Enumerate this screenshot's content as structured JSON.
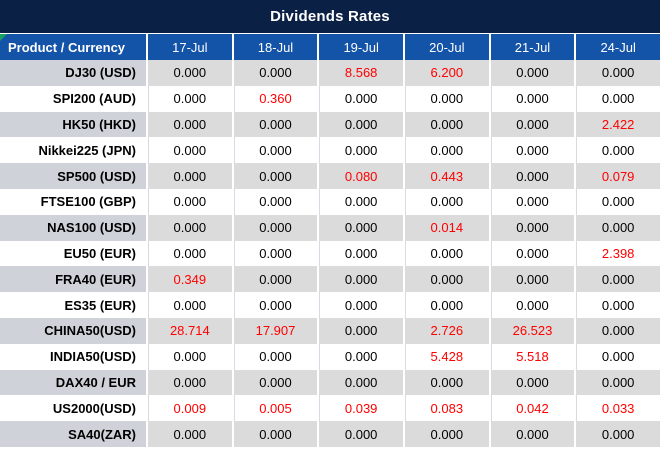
{
  "chart_data": {
    "type": "table",
    "title": "Dividends Rates",
    "columns": [
      "Product / Currency",
      "17-Jul",
      "18-Jul",
      "19-Jul",
      "20-Jul",
      "21-Jul",
      "24-Jul"
    ],
    "rows": [
      {
        "product": "DJ30 (USD)",
        "values": [
          "0.000",
          "0.000",
          "8.568",
          "6.200",
          "0.000",
          "0.000"
        ],
        "highlighted": [
          false,
          false,
          true,
          true,
          false,
          false
        ]
      },
      {
        "product": "SPI200 (AUD)",
        "values": [
          "0.000",
          "0.360",
          "0.000",
          "0.000",
          "0.000",
          "0.000"
        ],
        "highlighted": [
          false,
          true,
          false,
          false,
          false,
          false
        ]
      },
      {
        "product": "HK50 (HKD)",
        "values": [
          "0.000",
          "0.000",
          "0.000",
          "0.000",
          "0.000",
          "2.422"
        ],
        "highlighted": [
          false,
          false,
          false,
          false,
          false,
          true
        ]
      },
      {
        "product": "Nikkei225 (JPN)",
        "values": [
          "0.000",
          "0.000",
          "0.000",
          "0.000",
          "0.000",
          "0.000"
        ],
        "highlighted": [
          false,
          false,
          false,
          false,
          false,
          false
        ]
      },
      {
        "product": "SP500 (USD)",
        "values": [
          "0.000",
          "0.000",
          "0.080",
          "0.443",
          "0.000",
          "0.079"
        ],
        "highlighted": [
          false,
          false,
          true,
          true,
          false,
          true
        ]
      },
      {
        "product": "FTSE100 (GBP)",
        "values": [
          "0.000",
          "0.000",
          "0.000",
          "0.000",
          "0.000",
          "0.000"
        ],
        "highlighted": [
          false,
          false,
          false,
          false,
          false,
          false
        ]
      },
      {
        "product": "NAS100 (USD)",
        "values": [
          "0.000",
          "0.000",
          "0.000",
          "0.014",
          "0.000",
          "0.000"
        ],
        "highlighted": [
          false,
          false,
          false,
          true,
          false,
          false
        ]
      },
      {
        "product": "EU50 (EUR)",
        "values": [
          "0.000",
          "0.000",
          "0.000",
          "0.000",
          "0.000",
          "2.398"
        ],
        "highlighted": [
          false,
          false,
          false,
          false,
          false,
          true
        ]
      },
      {
        "product": "FRA40 (EUR)",
        "values": [
          "0.349",
          "0.000",
          "0.000",
          "0.000",
          "0.000",
          "0.000"
        ],
        "highlighted": [
          true,
          false,
          false,
          false,
          false,
          false
        ]
      },
      {
        "product": "ES35 (EUR)",
        "values": [
          "0.000",
          "0.000",
          "0.000",
          "0.000",
          "0.000",
          "0.000"
        ],
        "highlighted": [
          false,
          false,
          false,
          false,
          false,
          false
        ]
      },
      {
        "product": "CHINA50(USD)",
        "values": [
          "28.714",
          "17.907",
          "0.000",
          "2.726",
          "26.523",
          "0.000"
        ],
        "highlighted": [
          true,
          true,
          false,
          true,
          true,
          false
        ]
      },
      {
        "product": "INDIA50(USD)",
        "values": [
          "0.000",
          "0.000",
          "0.000",
          "5.428",
          "5.518",
          "0.000"
        ],
        "highlighted": [
          false,
          false,
          false,
          true,
          true,
          false
        ]
      },
      {
        "product": "DAX40 / EUR",
        "values": [
          "0.000",
          "0.000",
          "0.000",
          "0.000",
          "0.000",
          "0.000"
        ],
        "highlighted": [
          false,
          false,
          false,
          false,
          false,
          false
        ]
      },
      {
        "product": "US2000(USD)",
        "values": [
          "0.009",
          "0.005",
          "0.039",
          "0.083",
          "0.042",
          "0.033"
        ],
        "highlighted": [
          true,
          true,
          true,
          true,
          true,
          true
        ]
      },
      {
        "product": "SA40(ZAR)",
        "values": [
          "0.000",
          "0.000",
          "0.000",
          "0.000",
          "0.000",
          "0.000"
        ],
        "highlighted": [
          false,
          false,
          false,
          false,
          false,
          false
        ]
      }
    ],
    "colors": {
      "title_bg": "#0A2044",
      "header_bg": "#1353A8",
      "row_alt_gray": "#DBDBDB",
      "product_col_gray": "#CFD3D9",
      "highlight_value": "#FF0000",
      "corner_flag_green": "#17A05E"
    }
  }
}
